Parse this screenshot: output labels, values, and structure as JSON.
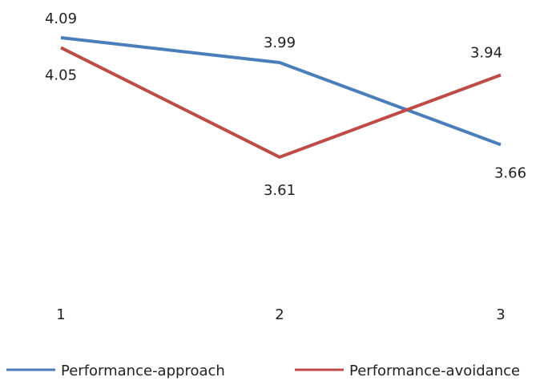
{
  "chart_data": {
    "type": "line",
    "x": [
      "1",
      "2",
      "3"
    ],
    "grid": false,
    "legend_position": "bottom",
    "series": [
      {
        "name": "Performance-approach",
        "values": [
          4.09,
          3.99,
          3.66
        ],
        "labels": [
          "4.09",
          "3.99",
          "3.66"
        ],
        "color": "#4a7ebb"
      },
      {
        "name": "Performance-avoidance",
        "values": [
          4.05,
          3.61,
          3.94
        ],
        "labels": [
          "4.05",
          "3.61",
          "3.94"
        ],
        "color": "#be4b48"
      }
    ]
  }
}
